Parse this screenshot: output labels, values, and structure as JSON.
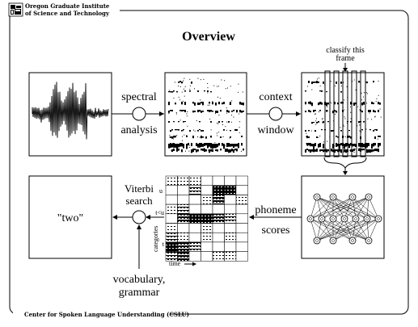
{
  "header": {
    "institute_line1": "Oregon Graduate Institute",
    "institute_line2": "of Science and Technology"
  },
  "title": "Overview",
  "labels": {
    "spectral": "spectral",
    "analysis": "analysis",
    "context": "context",
    "window": "window",
    "classify_line1": "classify this",
    "classify_line2": "frame",
    "phoneme": "phoneme",
    "scores": "scores",
    "viterbi_line1": "Viterbi",
    "viterbi_line2": "search",
    "vocab_line1": "vocabulary,",
    "vocab_line2": "grammar",
    "result": "\"two\"",
    "grid_u": "u",
    "grid_tu": "t<u",
    "grid_t": "t",
    "categories": "categories",
    "time": "time"
  },
  "footer": "Center for Spoken Language Understanding (CSLU)"
}
